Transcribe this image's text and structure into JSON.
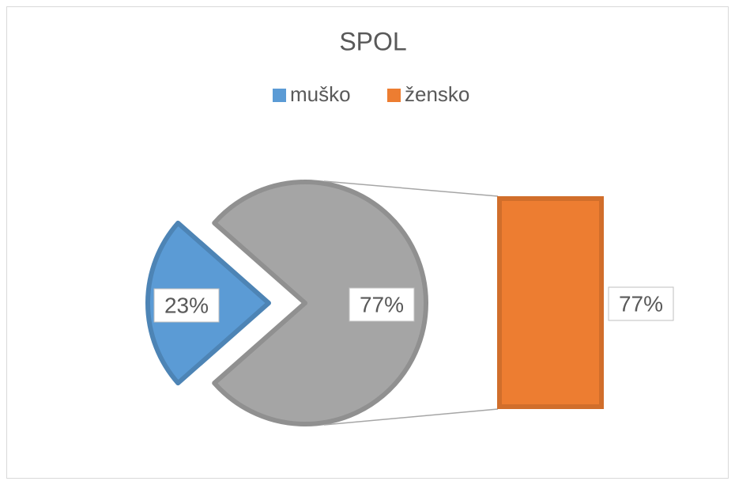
{
  "chart_data": {
    "type": "pie",
    "title": "SPOL",
    "categories": [
      "muško",
      "žensko"
    ],
    "values": [
      23,
      77
    ],
    "value_labels": [
      "23%",
      "77%"
    ],
    "colors": [
      "#5B9BD5",
      "#ED7D31"
    ],
    "other_color": "#A5A5A5"
  }
}
